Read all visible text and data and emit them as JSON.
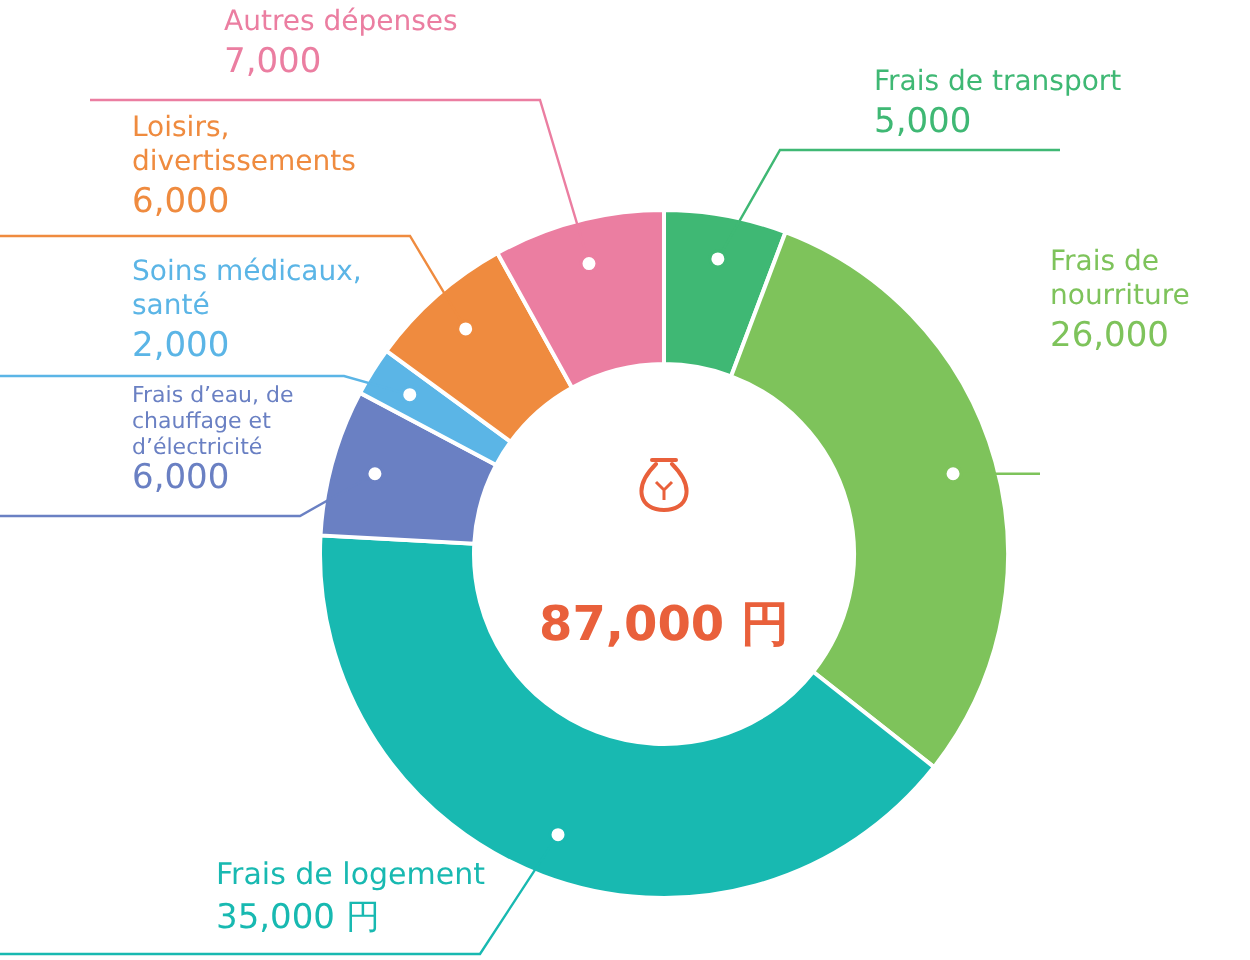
{
  "chart_data": {
    "type": "donut",
    "categories": [
      "Frais de transport",
      "Frais de nourriture",
      "Frais de logement",
      "Frais d’eau, de chauffage et d’électricité",
      "Soins médicaux, santé",
      "Loisirs, divertissements",
      "Autres dépenses"
    ],
    "values": [
      5000,
      26000,
      35000,
      6000,
      2000,
      6000,
      7000
    ],
    "colors": [
      "#3fb874",
      "#7ec35b",
      "#18b9b1",
      "#6a80c3",
      "#5bb5e6",
      "#ef8b3f",
      "#eb7ea1"
    ],
    "value_labels": [
      "5,000",
      "26,000",
      "35,000 円",
      "6,000",
      "2,000",
      "6,000",
      "7,000"
    ],
    "annotations": [
      "87,000 円"
    ]
  }
}
